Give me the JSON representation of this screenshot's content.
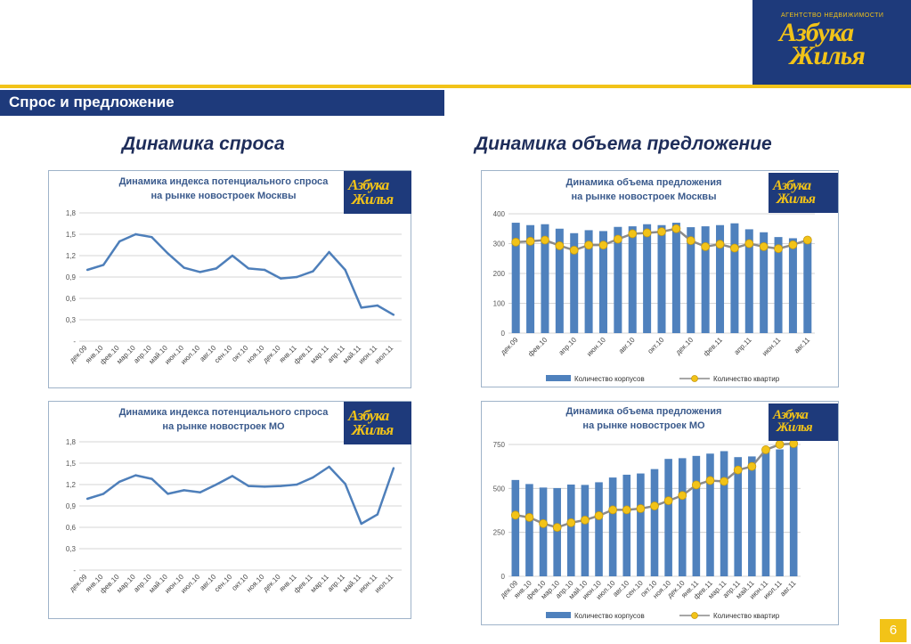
{
  "brand": {
    "subtitle": "АГЕНТСТВО НЕДВИЖИМОСТИ",
    "line1": "Азбука",
    "line2": "Жилья"
  },
  "section_title": "Спрос и предложение",
  "headings": {
    "left": "Динамика спроса",
    "right": "Динамика объема предложение"
  },
  "page_number": "6",
  "colors": {
    "navy": "#1e3a7b",
    "yellow": "#f2c318",
    "bar": "#4f81bd",
    "line": "#4e7fba",
    "dot_fill": "#f2c318",
    "dot_line": "#8a8a8a"
  },
  "chart_data": [
    {
      "type": "line",
      "title": "Динамика индекса потенциального спроса\nна рынке новостроек Москвы",
      "x": [
        "дек.09",
        "янв.10",
        "фев.10",
        "мар.10",
        "апр.10",
        "май.10",
        "июн.10",
        "июл.10",
        "авг.10",
        "сен.10",
        "окт.10",
        "ноя.10",
        "дек.10",
        "янв.11",
        "фев.11",
        "мар.11",
        "апр.11",
        "май.11",
        "июн.11",
        "июл.11"
      ],
      "series": [
        {
          "values": [
            1.0,
            1.07,
            1.4,
            1.5,
            1.46,
            1.23,
            1.03,
            0.97,
            1.02,
            1.2,
            1.02,
            1.0,
            0.88,
            0.9,
            0.98,
            1.25,
            1.0,
            0.47,
            0.5,
            0.37
          ]
        }
      ],
      "yticks": [
        "-",
        "0,3",
        "0,6",
        "0,9",
        "1,2",
        "1,5",
        "1,8"
      ],
      "ylim": [
        0,
        1.8
      ],
      "grid": true
    },
    {
      "type": "line",
      "title": "Динамика индекса потенциального спроса\nна рынке новостроек МО",
      "x": [
        "дек.09",
        "янв.10",
        "фев.10",
        "мар.10",
        "апр.10",
        "май.10",
        "июн.10",
        "июл.10",
        "авг.10",
        "сен.10",
        "окт.10",
        "ноя.10",
        "дек.10",
        "янв.11",
        "фев.11",
        "мар.11",
        "апр.11",
        "май.11",
        "июн.11",
        "июл.11"
      ],
      "series": [
        {
          "values": [
            1.0,
            1.07,
            1.24,
            1.33,
            1.28,
            1.07,
            1.12,
            1.09,
            1.2,
            1.32,
            1.18,
            1.17,
            1.18,
            1.2,
            1.3,
            1.45,
            1.21,
            0.65,
            0.78,
            1.43
          ]
        }
      ],
      "yticks": [
        "-",
        "0,3",
        "0,6",
        "0,9",
        "1,2",
        "1,5",
        "1,8"
      ],
      "ylim": [
        0,
        1.8
      ],
      "grid": true
    },
    {
      "type": "bar",
      "title": "Динамика объема предложения\nна рынке новостроек Москвы",
      "categories": [
        "дек.09",
        "янв.10",
        "фев.10",
        "мар.10",
        "апр.10",
        "май.10",
        "июн.10",
        "июл.10",
        "авг.10",
        "сен.10",
        "окт.10",
        "ноя.10",
        "дек.10",
        "янв.11",
        "фев.11",
        "мар.11",
        "апр.11",
        "май.11",
        "июн.11",
        "июл.11",
        "авг.11"
      ],
      "x_labels": [
        "дек.09",
        "",
        "фев.10",
        "",
        "апр.10",
        "",
        "июн.10",
        "",
        "авг.10",
        "",
        "окт.10",
        "",
        "дек.10",
        "",
        "фев.11",
        "",
        "апр.11",
        "",
        "июн.11",
        "",
        "авг.11"
      ],
      "series": [
        {
          "name": "Количество корпусов",
          "type": "bar",
          "values": [
            370,
            362,
            365,
            350,
            335,
            345,
            342,
            356,
            358,
            365,
            362,
            370,
            355,
            358,
            362,
            368,
            348,
            338,
            322,
            318,
            312
          ]
        },
        {
          "name": "Количество квартир",
          "type": "line",
          "values": [
            305,
            308,
            312,
            293,
            278,
            295,
            295,
            315,
            333,
            336,
            340,
            350,
            310,
            290,
            298,
            285,
            300,
            290,
            283,
            296,
            312
          ]
        }
      ],
      "yticks": [
        "0",
        "100",
        "200",
        "300",
        "400"
      ],
      "ylim": [
        0,
        400
      ],
      "grid": true,
      "legend": "bottom"
    },
    {
      "type": "bar",
      "title": "Динамика объема предложения\nна рынке новостроек МО",
      "categories": [
        "дек.09",
        "янв.10",
        "фев.10",
        "мар.10",
        "апр.10",
        "май.10",
        "июн.10",
        "июл.10",
        "авг.10",
        "сен.10",
        "окт.10",
        "ноя.10",
        "дек.10",
        "янв.11",
        "фев.11",
        "мар.11",
        "апр.11",
        "май.11",
        "июн.11",
        "июл.11",
        "авг.11"
      ],
      "x_labels": [
        "дек.09",
        "янв.10",
        "фев.10",
        "мар.10",
        "апр.10",
        "май.10",
        "июн.10",
        "июл.10",
        "авг.10",
        "сен.10",
        "окт.10",
        "ноя.10",
        "дек.10",
        "янв.11",
        "фев.11",
        "мар.11",
        "апр.11",
        "май.11",
        "июн.11",
        "июл.11",
        "авг.11"
      ],
      "series": [
        {
          "name": "Количество корпусов",
          "type": "bar",
          "values": [
            548,
            525,
            505,
            502,
            522,
            520,
            535,
            562,
            578,
            585,
            610,
            668,
            672,
            685,
            698,
            712,
            678,
            682,
            722,
            722,
            752
          ]
        },
        {
          "name": "Количество квартир",
          "type": "line",
          "values": [
            348,
            335,
            300,
            278,
            305,
            320,
            345,
            378,
            378,
            385,
            400,
            430,
            460,
            520,
            545,
            540,
            605,
            625,
            720,
            750,
            755
          ]
        }
      ],
      "yticks": [
        "0",
        "250",
        "500",
        "750"
      ],
      "ylim": [
        0,
        750
      ],
      "grid": true,
      "legend": "bottom"
    }
  ]
}
